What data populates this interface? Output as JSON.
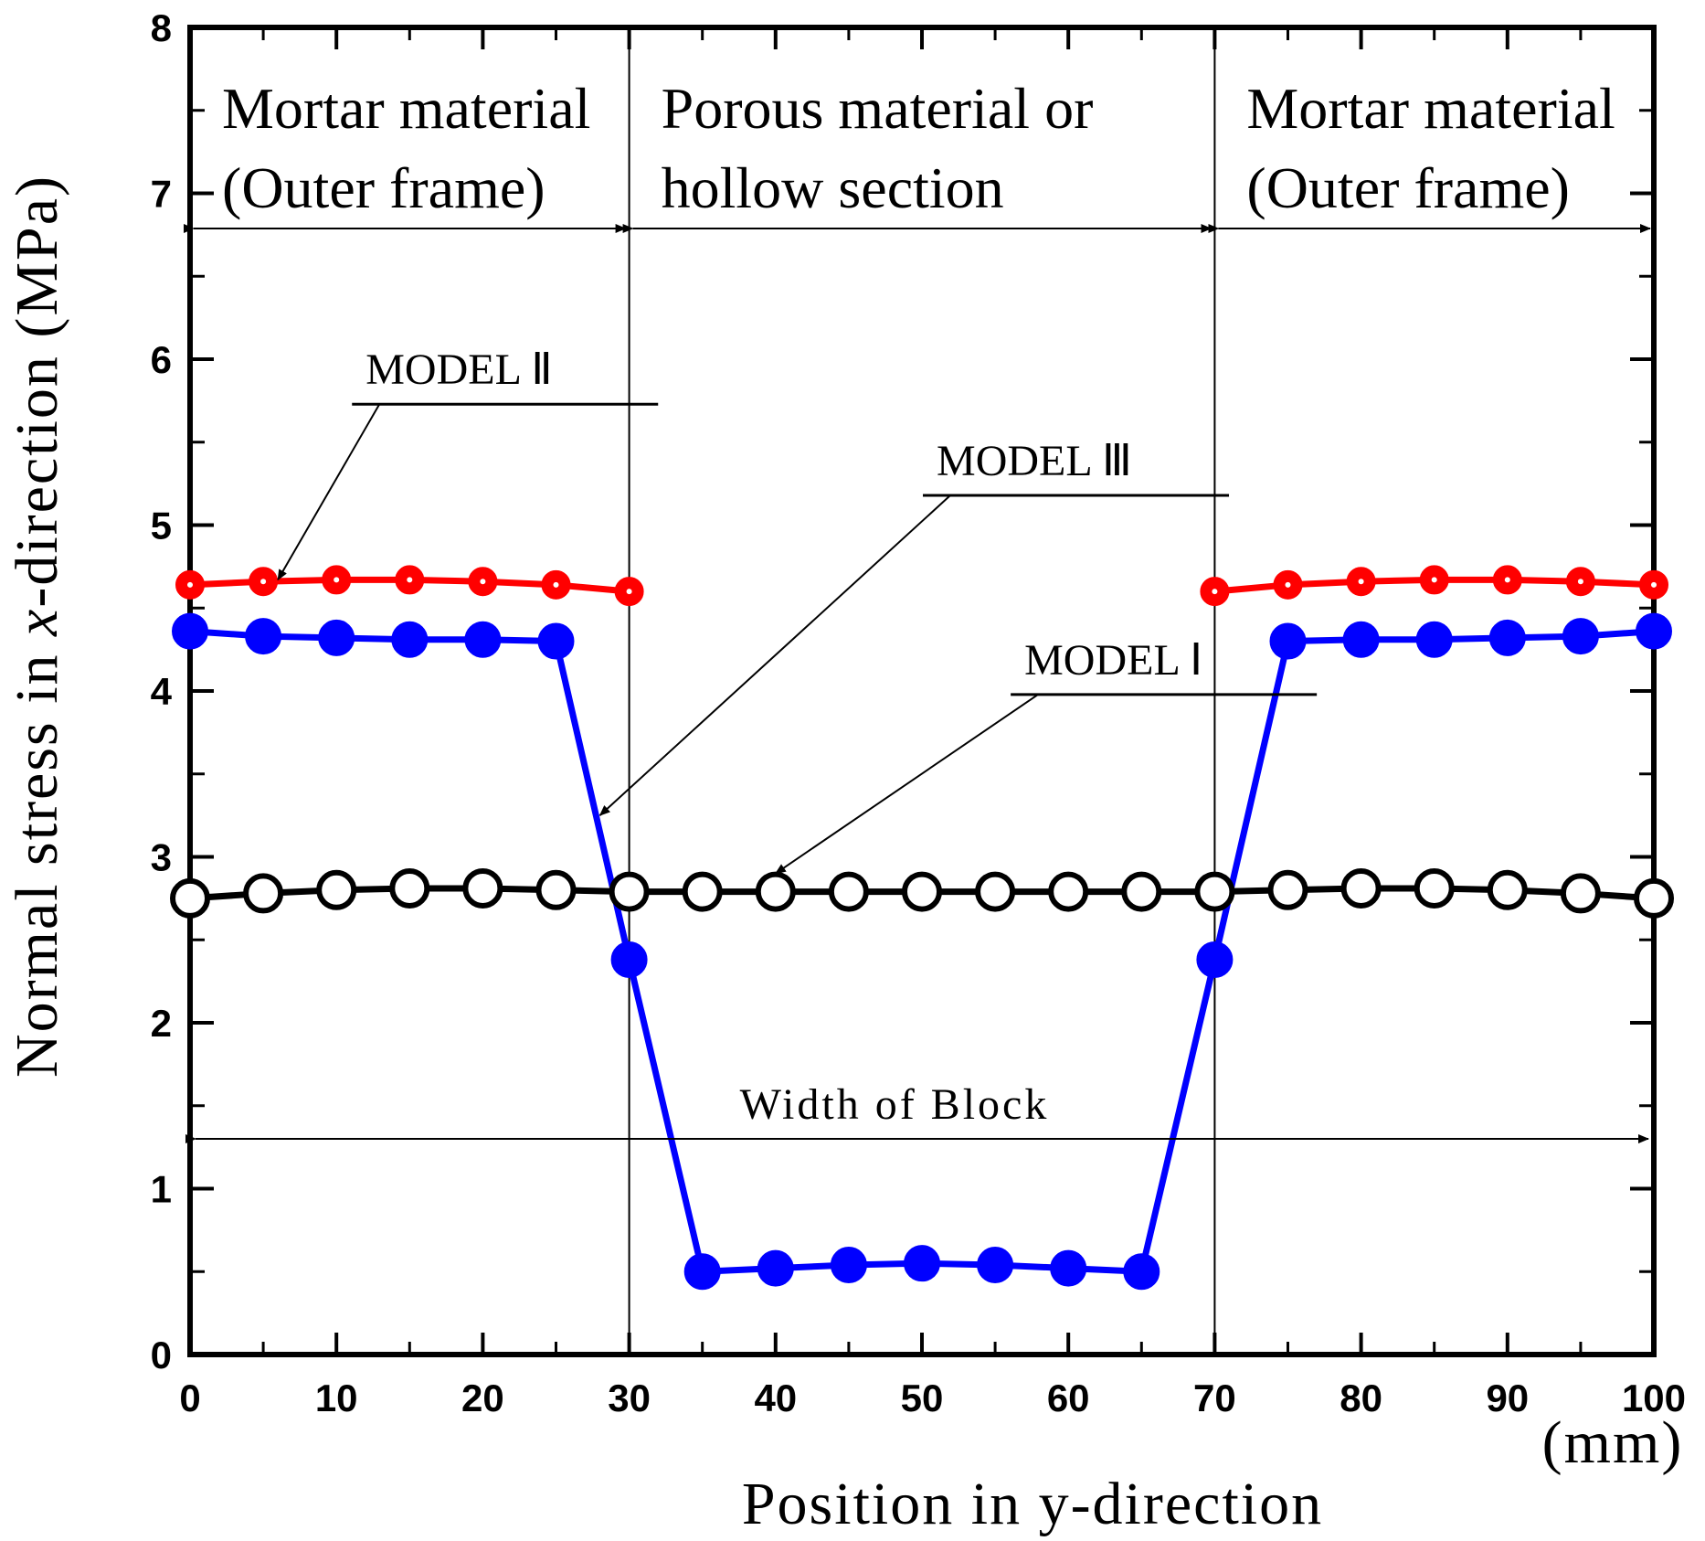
{
  "chart_data": {
    "type": "line",
    "xlabel": "Position in y-direction",
    "x_unit": "(mm)",
    "ylabel_parts": [
      "Normal stress in ",
      "x",
      "-direction (MPa)"
    ],
    "xlim": [
      0,
      100
    ],
    "ylim": [
      0,
      8
    ],
    "x_ticks": [
      0,
      10,
      20,
      30,
      40,
      50,
      60,
      70,
      80,
      90,
      100
    ],
    "y_ticks": [
      0,
      1,
      2,
      3,
      4,
      5,
      6,
      7,
      8
    ],
    "series": [
      {
        "name": "MODEL Ⅰ",
        "color": "#000000",
        "marker": "open-circle",
        "x": [
          0,
          5,
          10,
          15,
          20,
          25,
          30,
          35,
          40,
          45,
          50,
          55,
          60,
          65,
          70,
          75,
          80,
          85,
          90,
          95,
          100
        ],
        "y": [
          2.75,
          2.78,
          2.8,
          2.81,
          2.81,
          2.8,
          2.79,
          2.79,
          2.79,
          2.79,
          2.79,
          2.79,
          2.79,
          2.79,
          2.79,
          2.8,
          2.81,
          2.81,
          2.8,
          2.78,
          2.75
        ]
      },
      {
        "name": "MODEL Ⅱ",
        "color": "#ff0000",
        "marker": "dot-circle",
        "segments": [
          {
            "x": [
              0,
              5,
              10,
              15,
              20,
              25,
              30
            ],
            "y": [
              4.64,
              4.66,
              4.67,
              4.67,
              4.66,
              4.64,
              4.6
            ]
          },
          {
            "x": [
              70,
              75,
              80,
              85,
              90,
              95,
              100
            ],
            "y": [
              4.6,
              4.64,
              4.66,
              4.67,
              4.67,
              4.66,
              4.64
            ]
          }
        ]
      },
      {
        "name": "MODEL Ⅲ",
        "color": "#0000ff",
        "marker": "filled-circle",
        "x": [
          0,
          5,
          10,
          15,
          20,
          25,
          30,
          35,
          40,
          45,
          50,
          55,
          60,
          65,
          70,
          75,
          80,
          85,
          90,
          95,
          100
        ],
        "y": [
          4.36,
          4.33,
          4.32,
          4.31,
          4.31,
          4.3,
          2.38,
          0.5,
          0.52,
          0.54,
          0.55,
          0.54,
          0.52,
          0.5,
          2.38,
          4.3,
          4.31,
          4.31,
          4.32,
          4.33,
          4.36
        ]
      }
    ],
    "regions": [
      {
        "lines": [
          "Mortar material",
          "(Outer frame)"
        ],
        "x_range": [
          0,
          30
        ]
      },
      {
        "lines": [
          "Porous material or",
          "hollow section"
        ],
        "x_range": [
          30,
          70
        ]
      },
      {
        "lines": [
          "Mortar material",
          "(Outer frame)"
        ],
        "x_range": [
          70,
          100
        ]
      }
    ],
    "region_dividers_x": [
      30,
      70
    ],
    "width_annotation": {
      "label": "Width of Block",
      "x_range": [
        0,
        100
      ],
      "y": 1.3
    },
    "model_labels": [
      {
        "text": "MODEL Ⅱ",
        "target": [
          6,
          4.67
        ],
        "label_at": [
          12,
          5.85
        ]
      },
      {
        "text": "MODEL Ⅲ",
        "target": [
          28,
          3.25
        ],
        "label_at": [
          51,
          5.3
        ]
      },
      {
        "text": "MODEL Ⅰ",
        "target": [
          40,
          2.9
        ],
        "label_at": [
          57,
          4.1
        ]
      }
    ]
  }
}
